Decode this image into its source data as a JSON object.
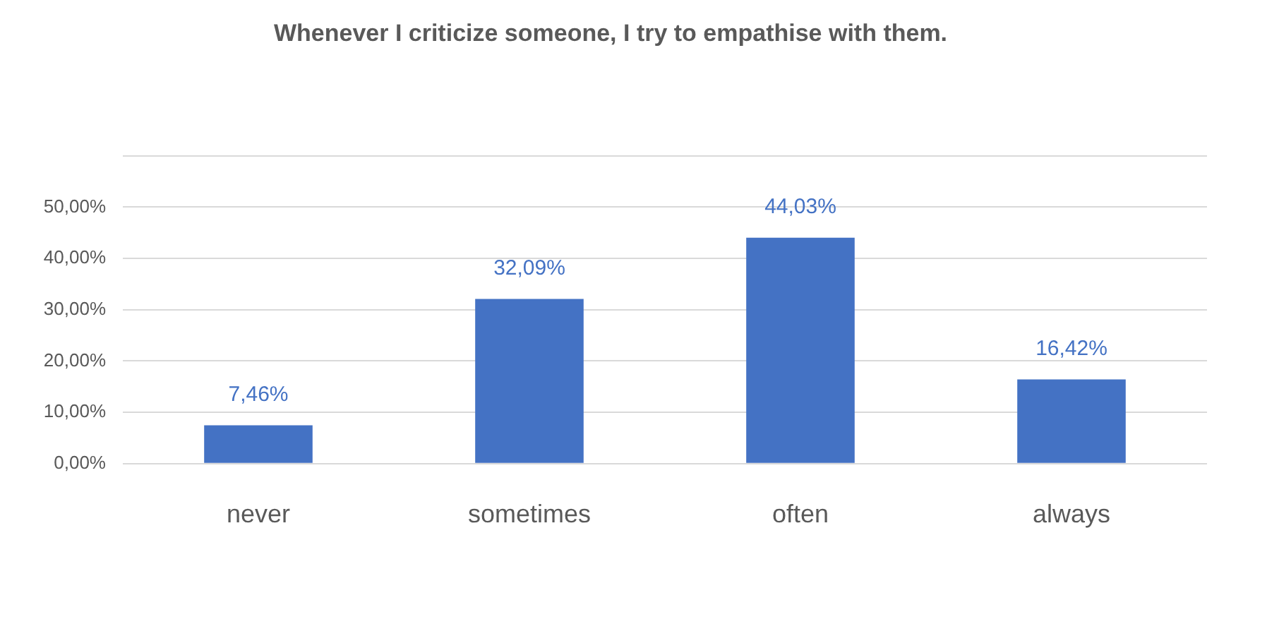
{
  "chart_data": {
    "type": "bar",
    "title": "Whenever I criticize someone, I try to empathise with them.",
    "categories": [
      "never",
      "sometimes",
      "often",
      "always"
    ],
    "values": [
      7.46,
      32.09,
      44.03,
      16.42
    ],
    "value_labels": [
      "7,46%",
      "32,09%",
      "44,03%",
      "16,42%"
    ],
    "color": "#4472c4",
    "ylim": [
      0,
      60
    ],
    "yticks": [
      {
        "value": 0,
        "label": "0,00%"
      },
      {
        "value": 10,
        "label": "10,00%"
      },
      {
        "value": 20,
        "label": "20,00%"
      },
      {
        "value": 30,
        "label": "30,00%"
      },
      {
        "value": 40,
        "label": "40,00%"
      },
      {
        "value": 50,
        "label": "50,00%"
      },
      {
        "value": 60,
        "label": null
      }
    ],
    "grid": "y"
  }
}
